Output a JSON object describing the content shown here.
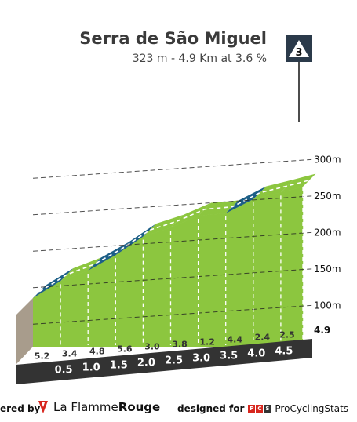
{
  "climb": {
    "name": "Serra de São Miguel",
    "stats": "323 m - 4.9 Km at 3.6 %",
    "category": "3",
    "end_km_label": "4.9"
  },
  "footer": {
    "powered_by": "ered by",
    "brand_prefix": "La Flamme",
    "brand_suffix": "Rouge",
    "designed_for": "designed for",
    "pcs_letters": [
      "P",
      "C",
      "S"
    ],
    "pcs_name": "ProCyclingStats"
  },
  "colors": {
    "green": "#8CC63F",
    "blue": "#1D5F87",
    "base": "#333333",
    "start_wall": "#A89C8C",
    "category_badge": "#2B3A4A"
  },
  "chart_data": {
    "type": "area",
    "title": "Serra de São Miguel",
    "subtitle": "323 m - 4.9 Km at 3.6 %",
    "x_unit": "km",
    "y_unit": "m",
    "y_ticks": [
      {
        "value": 100,
        "label": "100m"
      },
      {
        "value": 150,
        "label": "150m"
      },
      {
        "value": 200,
        "label": "200m"
      },
      {
        "value": 250,
        "label": "250m"
      },
      {
        "value": 300,
        "label": "300m"
      }
    ],
    "x_ticks": [
      "0.5",
      "1.0",
      "1.5",
      "2.0",
      "2.5",
      "3.0",
      "3.5",
      "4.0",
      "4.5"
    ],
    "segments": [
      {
        "from_km": 0.0,
        "to_km": 0.5,
        "gradient": 5.2,
        "label": "5.2"
      },
      {
        "from_km": 0.5,
        "to_km": 1.0,
        "gradient": 3.4,
        "label": "3.4"
      },
      {
        "from_km": 1.0,
        "to_km": 1.5,
        "gradient": 4.8,
        "label": "4.8"
      },
      {
        "from_km": 1.5,
        "to_km": 2.0,
        "gradient": 5.6,
        "label": "5.6"
      },
      {
        "from_km": 2.0,
        "to_km": 2.5,
        "gradient": 3.0,
        "label": "3.0"
      },
      {
        "from_km": 2.5,
        "to_km": 3.0,
        "gradient": 3.8,
        "label": "3.8"
      },
      {
        "from_km": 3.0,
        "to_km": 3.5,
        "gradient": 1.2,
        "label": "1.2"
      },
      {
        "from_km": 3.5,
        "to_km": 4.0,
        "gradient": 4.4,
        "label": "4.4"
      },
      {
        "from_km": 4.0,
        "to_km": 4.5,
        "gradient": 2.4,
        "label": "2.4"
      },
      {
        "from_km": 4.5,
        "to_km": 4.9,
        "gradient": 2.5,
        "label": "2.5"
      }
    ],
    "xlim": [
      0,
      4.9
    ],
    "ylim": [
      55,
      330
    ]
  }
}
